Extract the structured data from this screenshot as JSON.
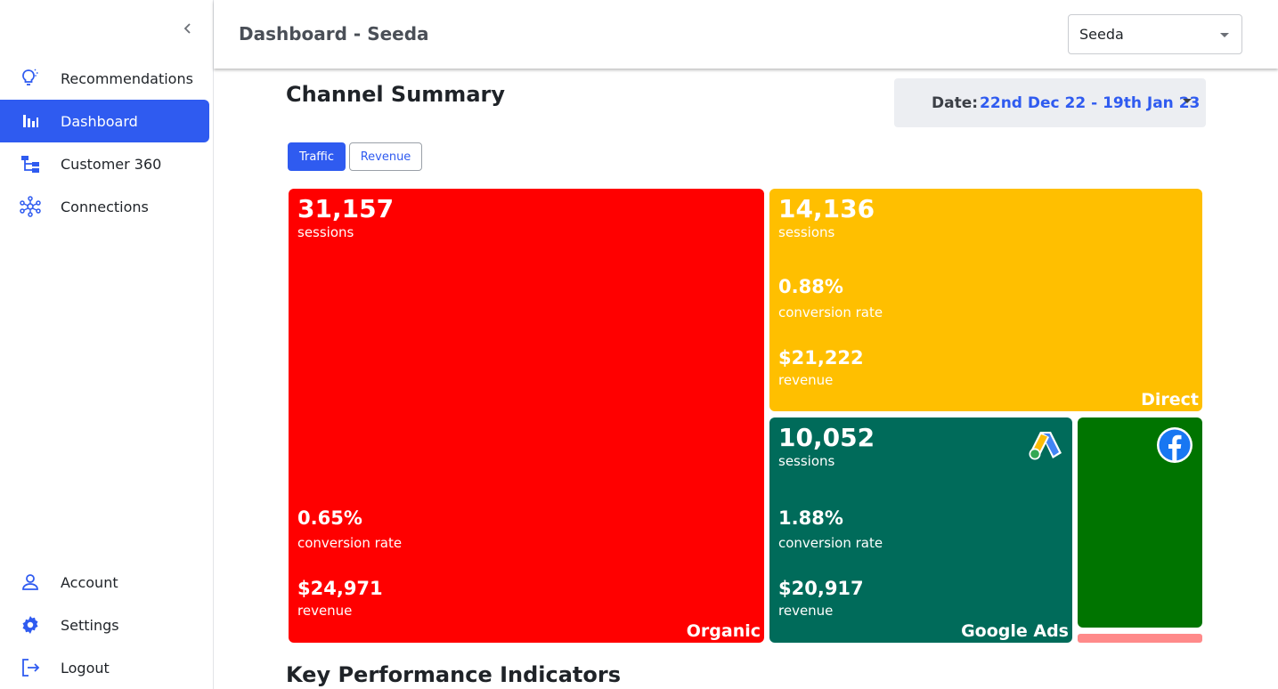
{
  "header": {
    "title": "Dashboard - Seeda",
    "client_select": "Seeda"
  },
  "sidebar": {
    "items": [
      {
        "label": "Recommendations",
        "icon": "lightbulb-icon"
      },
      {
        "label": "Dashboard",
        "icon": "bar-chart-icon",
        "active": true
      },
      {
        "label": "Customer 360",
        "icon": "hierarchy-icon"
      },
      {
        "label": "Connections",
        "icon": "network-icon"
      }
    ],
    "bottom_items": [
      {
        "label": "Account",
        "icon": "person-icon"
      },
      {
        "label": "Settings",
        "icon": "gear-icon"
      },
      {
        "label": "Logout",
        "icon": "logout-icon"
      }
    ]
  },
  "main": {
    "section_title": "Channel Summary",
    "date_label": "Date:",
    "date_value": "22nd Dec 22 - 19th Jan 23",
    "toggles": [
      "Traffic",
      "Revenue"
    ],
    "active_toggle": "Traffic",
    "tiles": {
      "organic": {
        "name": "Organic",
        "sessions": "31,157",
        "sessions_label": "sessions",
        "conversion": "0.65%",
        "conversion_label": "conversion rate",
        "revenue": "$24,971",
        "revenue_label": "revenue",
        "color": "#ff0000"
      },
      "direct": {
        "name": "Direct",
        "sessions": "14,136",
        "sessions_label": "sessions",
        "conversion": "0.88%",
        "conversion_label": "conversion rate",
        "revenue": "$21,222",
        "revenue_label": "revenue",
        "color": "#ffbf00"
      },
      "google_ads": {
        "name": "Google Ads",
        "sessions": "10,052",
        "sessions_label": "sessions",
        "conversion": "1.88%",
        "conversion_label": "conversion rate",
        "revenue": "$20,917",
        "revenue_label": "revenue",
        "color": "#006b5a",
        "logo": "google-ads-icon"
      },
      "facebook": {
        "color": "#007400",
        "logo": "facebook-icon"
      }
    },
    "kpi_title": "Key Performance Indicators"
  },
  "colors": {
    "accent": "#2f5bf0",
    "organic": "#ff0000",
    "direct": "#ffbf00",
    "google_ads": "#006b5a",
    "facebook": "#007400",
    "other": "#ff8a8a"
  }
}
